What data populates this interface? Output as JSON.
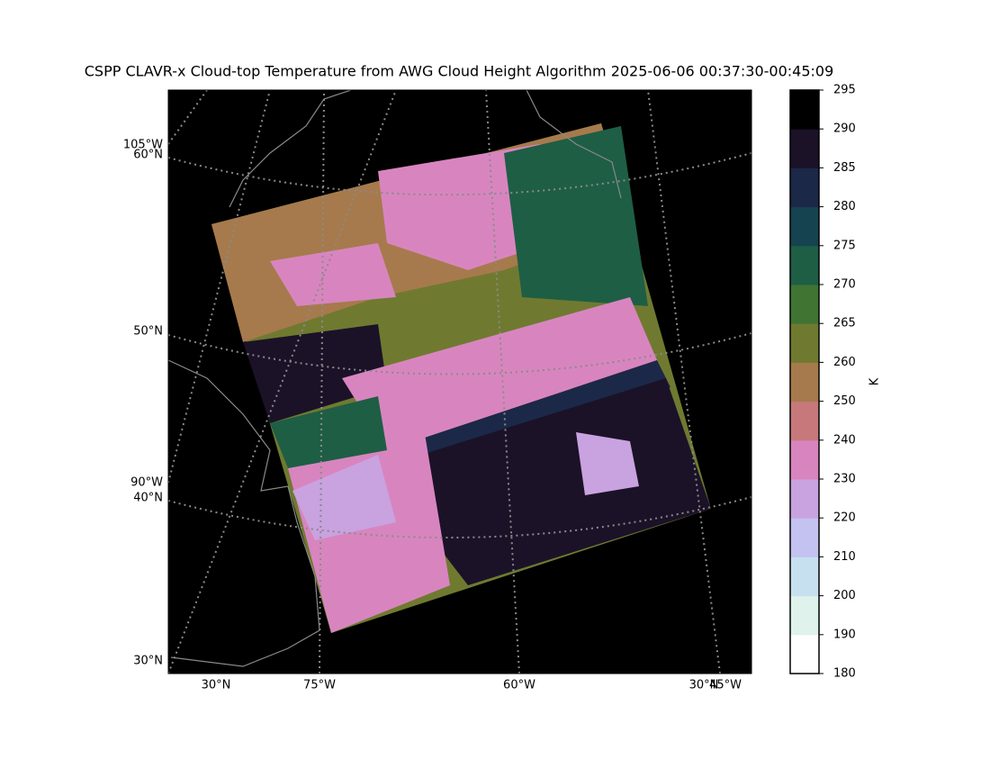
{
  "title": "CSPP CLAVR-x Cloud-top Temperature from AWG Cloud Height Algorithm 2025-06-06 00:37:30-00:45:09",
  "map": {
    "left_labels": [
      "105°W",
      "60°N",
      "50°N",
      "90°W",
      "40°N",
      "30°N"
    ],
    "bottom_labels": [
      "30°N",
      "75°W",
      "60°W",
      "30°N",
      "45°W"
    ]
  },
  "colorbar": {
    "label": "K",
    "ticks": [
      180,
      190,
      200,
      210,
      220,
      230,
      240,
      250,
      260,
      265,
      270,
      275,
      280,
      285,
      290,
      295
    ],
    "colors": [
      "#ffffff",
      "#dff2ec",
      "#c6e0f0",
      "#c4c2f0",
      "#c9a2e0",
      "#d885bf",
      "#c7787a",
      "#a67a4c",
      "#6f7a30",
      "#3f7433",
      "#1e5e45",
      "#15434f",
      "#1c2848",
      "#1b1228",
      "#000000"
    ]
  }
}
